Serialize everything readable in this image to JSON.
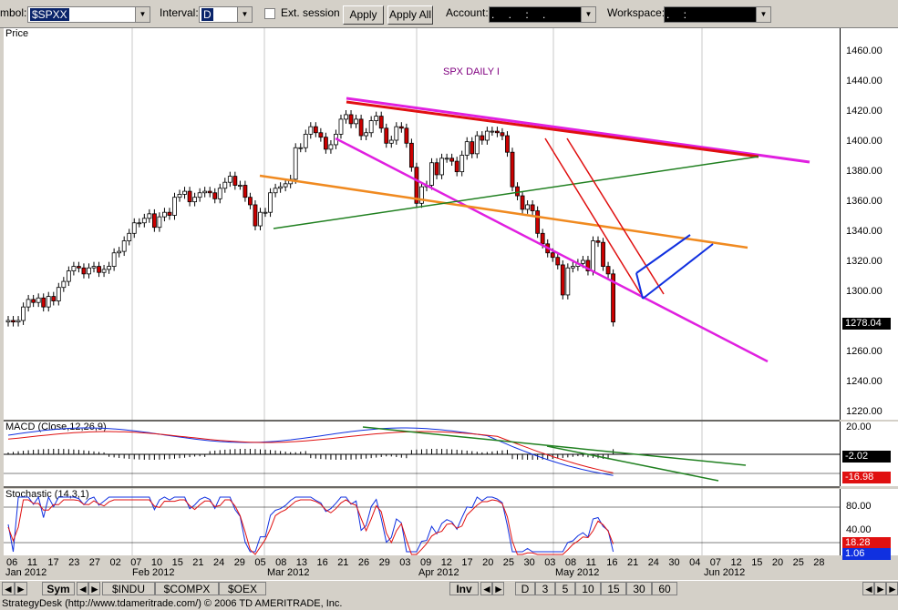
{
  "toolbar": {
    "symbol_label": "mbol:",
    "symbol_value": "$SPXX",
    "interval_label": "Interval:",
    "interval_value": "D",
    "ext_session_label": "Ext. session",
    "apply_label": "Apply",
    "apply_all_label": "Apply All",
    "account_label": "Account:",
    "account_value": ". . : .",
    "workspace_label": "Workspace:",
    "workspace_value": ". :"
  },
  "price_pane": {
    "title": "Price",
    "chart_title": "SPX DAILY I",
    "last_price": "1278.04",
    "y_ticks": [
      "1460.00",
      "1440.00",
      "1420.00",
      "1400.00",
      "1380.00",
      "1360.00",
      "1340.00",
      "1320.00",
      "1300.00",
      "1280.00",
      "1260.00",
      "1240.00",
      "1220.00"
    ]
  },
  "macd_pane": {
    "title": "MACD (Close,12,26,9)",
    "y_ticks": [
      "20.00",
      "-2.02",
      "-16.98"
    ],
    "value_macd": "-2.02",
    "value_signal": "-16.98"
  },
  "stoch_pane": {
    "title": "Stochastic (14,3,1)",
    "y_ticks": [
      "80.00",
      "40.00"
    ],
    "value_k": "18.28",
    "value_d": "1.06"
  },
  "date_axis": {
    "days": [
      "06",
      "11",
      "17",
      "23",
      "27",
      "02",
      "07",
      "10",
      "15",
      "21",
      "24",
      "29",
      "05",
      "08",
      "13",
      "16",
      "21",
      "26",
      "29",
      "03",
      "09",
      "12",
      "17",
      "20",
      "25",
      "30",
      "03",
      "08",
      "11",
      "16",
      "21",
      "24",
      "30",
      "04",
      "07",
      "12",
      "15",
      "20",
      "25",
      "28"
    ],
    "months": [
      "Jan 2012",
      "Feb 2012",
      "Mar 2012",
      "Apr 2012",
      "May 2012",
      "Jun 2012"
    ]
  },
  "bottom_bar": {
    "sym_label": "Sym",
    "tabs": [
      "$INDU",
      "$COMPX",
      "$OEX"
    ],
    "inv_label": "Inv",
    "intervals": [
      "D",
      "3",
      "5",
      "10",
      "15",
      "30",
      "60"
    ]
  },
  "status": {
    "text": "StrategyDesk (http://www.tdameritrade.com/) © 2006 TD AMERITRADE, Inc."
  },
  "colors": {
    "up_candle": "#ffffff",
    "down_candle": "#cc0000",
    "magenta_line": "#e020e0",
    "red_line": "#e01010",
    "orange_line": "#f08a20",
    "green_line": "#208020",
    "blue_line": "#1030e0",
    "macd_line": "#1030e0",
    "signal_line": "#e01010"
  },
  "chart_data": {
    "type": "candlestick",
    "title": "SPX DAILY I",
    "ylim": [
      1220,
      1460
    ],
    "close": [
      1280,
      1279,
      1280,
      1289,
      1294,
      1292,
      1295,
      1289,
      1296,
      1293,
      1302,
      1306,
      1313,
      1316,
      1315,
      1311,
      1315,
      1316,
      1312,
      1314,
      1316,
      1325,
      1326,
      1333,
      1338,
      1345,
      1345,
      1348,
      1351,
      1342,
      1349,
      1352,
      1350,
      1362,
      1364,
      1366,
      1359,
      1362,
      1365,
      1366,
      1365,
      1361,
      1368,
      1372,
      1376,
      1370,
      1370,
      1362,
      1357,
      1343,
      1352,
      1352,
      1365,
      1368,
      1369,
      1371,
      1374,
      1395,
      1395,
      1404,
      1409,
      1405,
      1402,
      1394,
      1397,
      1404,
      1414,
      1417,
      1411,
      1414,
      1403,
      1405,
      1413,
      1416,
      1408,
      1398,
      1400,
      1409,
      1408,
      1398,
      1382,
      1358,
      1369,
      1370,
      1385,
      1377,
      1388,
      1388,
      1386,
      1379,
      1390,
      1399,
      1391,
      1403,
      1400,
      1406,
      1406,
      1405,
      1403,
      1392,
      1369,
      1363,
      1354,
      1357,
      1353,
      1338,
      1331,
      1325,
      1322,
      1317,
      1297,
      1315,
      1316,
      1318,
      1320,
      1313,
      1333,
      1332,
      1316,
      1311,
      1279
    ]
  }
}
